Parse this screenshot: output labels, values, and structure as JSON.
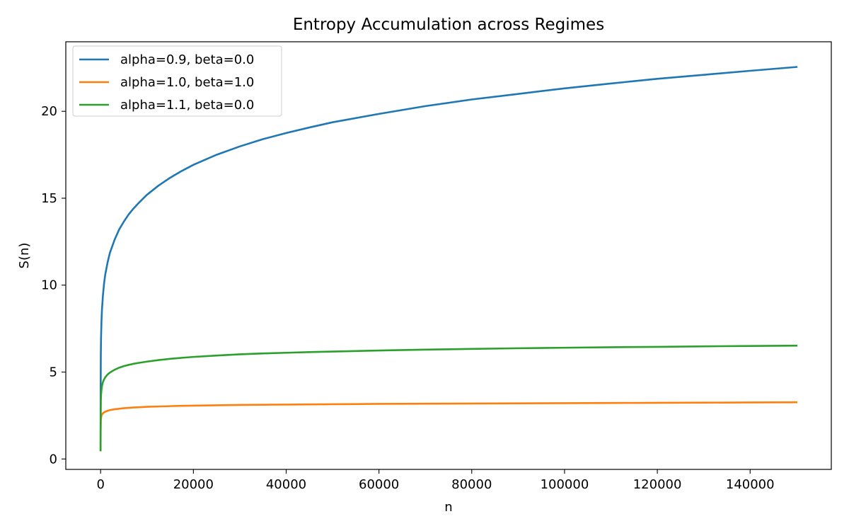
{
  "chart_data": {
    "type": "line",
    "title": "Entropy Accumulation across Regimes",
    "xlabel": "n",
    "ylabel": "S(n)",
    "xlim": [
      -7500,
      157500
    ],
    "ylim": [
      -0.6,
      24.0
    ],
    "xticks": [
      0,
      20000,
      40000,
      60000,
      80000,
      100000,
      120000,
      140000
    ],
    "xtick_labels": [
      "0",
      "20000",
      "40000",
      "60000",
      "80000",
      "100000",
      "120000",
      "140000"
    ],
    "yticks": [
      0,
      5,
      10,
      15,
      20
    ],
    "ytick_labels": [
      "0",
      "5",
      "10",
      "15",
      "20"
    ],
    "grid": false,
    "legend_position": "top-left",
    "x": [
      1,
      10,
      50,
      100,
      200,
      300,
      500,
      750,
      1000,
      1500,
      2000,
      3000,
      4000,
      5000,
      6000,
      7000,
      8000,
      10000,
      12500,
      15000,
      17500,
      20000,
      25000,
      30000,
      35000,
      40000,
      45000,
      50000,
      60000,
      70000,
      80000,
      90000,
      100000,
      110000,
      120000,
      130000,
      140000,
      150000
    ],
    "series": [
      {
        "name": "alpha=0.9, beta=0.0",
        "color": "#1f77b4",
        "values": [
          0.5,
          3.6,
          6.0,
          7.0,
          8.0,
          8.6,
          9.4,
          10.1,
          10.6,
          11.3,
          11.85,
          12.6,
          13.2,
          13.65,
          14.05,
          14.38,
          14.67,
          15.2,
          15.73,
          16.18,
          16.57,
          16.92,
          17.5,
          17.98,
          18.4,
          18.75,
          19.07,
          19.37,
          19.85,
          20.3,
          20.68,
          21.0,
          21.32,
          21.6,
          21.87,
          22.1,
          22.33,
          22.55
        ]
      },
      {
        "name": "alpha=1.0, beta=1.0",
        "color": "#ff7f0e",
        "values": [
          0.5,
          1.6,
          2.2,
          2.35,
          2.5,
          2.56,
          2.63,
          2.68,
          2.72,
          2.77,
          2.81,
          2.86,
          2.89,
          2.92,
          2.94,
          2.96,
          2.97,
          3.0,
          3.02,
          3.04,
          3.06,
          3.07,
          3.09,
          3.11,
          3.12,
          3.13,
          3.14,
          3.15,
          3.17,
          3.18,
          3.19,
          3.2,
          3.21,
          3.22,
          3.23,
          3.24,
          3.25,
          3.26
        ]
      },
      {
        "name": "alpha=1.1, beta=0.0",
        "color": "#2ca02c",
        "values": [
          0.5,
          2.0,
          3.3,
          3.7,
          4.0,
          4.2,
          4.42,
          4.58,
          4.7,
          4.86,
          4.97,
          5.13,
          5.25,
          5.34,
          5.41,
          5.47,
          5.52,
          5.6,
          5.69,
          5.76,
          5.82,
          5.87,
          5.95,
          6.02,
          6.07,
          6.11,
          6.15,
          6.18,
          6.24,
          6.29,
          6.33,
          6.37,
          6.4,
          6.43,
          6.45,
          6.48,
          6.5,
          6.52
        ]
      }
    ]
  }
}
